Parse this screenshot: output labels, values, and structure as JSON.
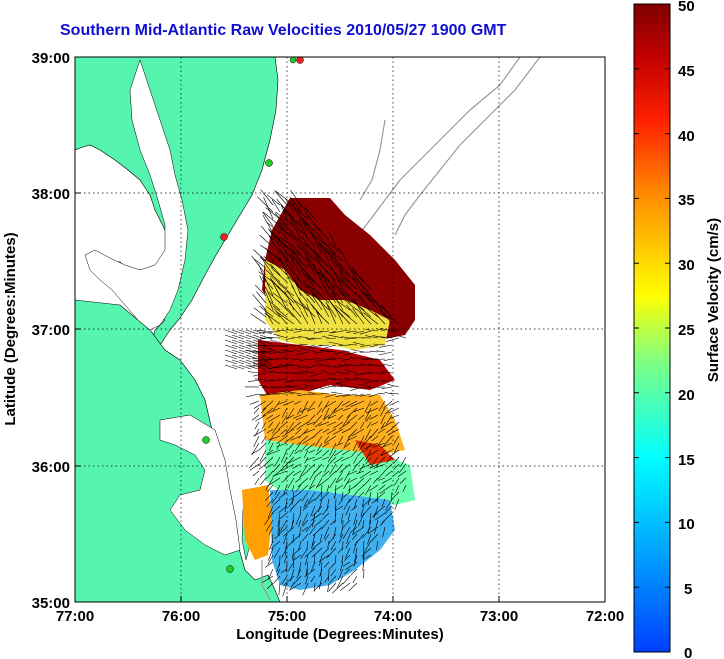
{
  "title": "Southern Mid-Atlantic Raw Velocities 2010/05/27 1900 GMT",
  "xaxis": {
    "label": "Longitude (Degrees:Minutes)",
    "ticks": [
      "77:00",
      "76:00",
      "75:00",
      "74:00",
      "73:00",
      "72:00"
    ]
  },
  "yaxis": {
    "label": "Latitude (Degrees:Minutes)",
    "ticks": [
      "39:00",
      "38:00",
      "37:00",
      "36:00",
      "35:00"
    ]
  },
  "colorbar": {
    "label": "Surface Velocity (cm/s)",
    "ticks": [
      "50",
      "45",
      "40",
      "35",
      "30",
      "25",
      "20",
      "15",
      "10",
      "5",
      "0"
    ],
    "range": [
      0,
      50
    ]
  },
  "colors": {
    "land": "#55f5b0",
    "water": "#ffffff",
    "title": "#1010d0",
    "bathymetry": "#999999",
    "station_green": "#22cc22",
    "station_red": "#ee2222"
  },
  "map_extent": {
    "lon": [
      -77,
      -72
    ],
    "lat": [
      35,
      39
    ]
  }
}
